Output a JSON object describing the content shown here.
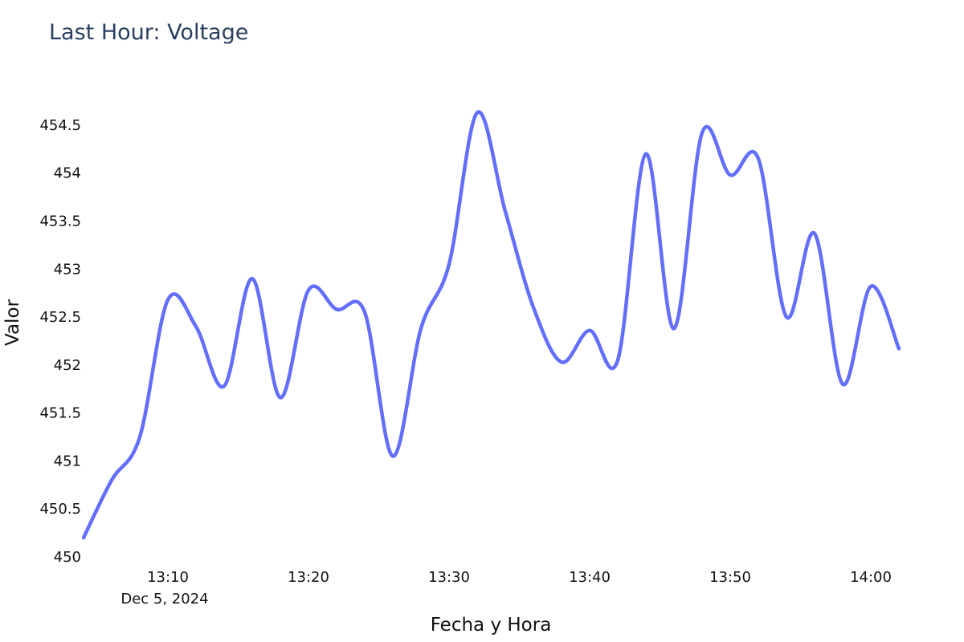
{
  "chart_data": {
    "type": "line",
    "title": "Last Hour: Voltage",
    "xlabel": "Fecha y Hora",
    "ylabel": "Valor",
    "x_date_label": "Dec 5, 2024",
    "x_tick_labels": [
      "13:10",
      "13:20",
      "13:30",
      "13:40",
      "13:50",
      "14:00"
    ],
    "y_tick_labels": [
      "450",
      "450.5",
      "451",
      "451.5",
      "452",
      "452.5",
      "453",
      "453.5",
      "454",
      "454.5"
    ],
    "x_range": [
      "2024-12-05 13:04:00",
      "2024-12-05 14:02:00"
    ],
    "ylim": [
      450,
      454.8
    ],
    "grid": false,
    "line_shape": "spline",
    "color": "#636efa",
    "series": [
      {
        "x": [
          "13:04:00",
          "13:06:00",
          "13:08:00",
          "13:10:00",
          "13:12:00",
          "13:14:00",
          "13:16:00",
          "13:18:00",
          "13:20:00",
          "13:22:00",
          "13:24:00",
          "13:26:00",
          "13:28:00",
          "13:30:00",
          "13:32:00",
          "13:34:00",
          "13:36:00",
          "13:38:00",
          "13:40:00",
          "13:42:00",
          "13:44:00",
          "13:46:00",
          "13:48:00",
          "13:50:00",
          "13:52:00",
          "13:54:00",
          "13:56:00",
          "13:58:00",
          "14:00:00",
          "14:02:00"
        ],
        "y": [
          450.2,
          450.8,
          451.25,
          452.68,
          452.4,
          451.78,
          452.9,
          451.66,
          452.78,
          452.58,
          452.55,
          451.05,
          452.38,
          453.05,
          454.63,
          453.6,
          452.6,
          452.03,
          452.36,
          452.05,
          454.2,
          452.38,
          454.42,
          453.98,
          454.15,
          452.5,
          453.37,
          451.8,
          452.82,
          452.17
        ]
      }
    ]
  }
}
